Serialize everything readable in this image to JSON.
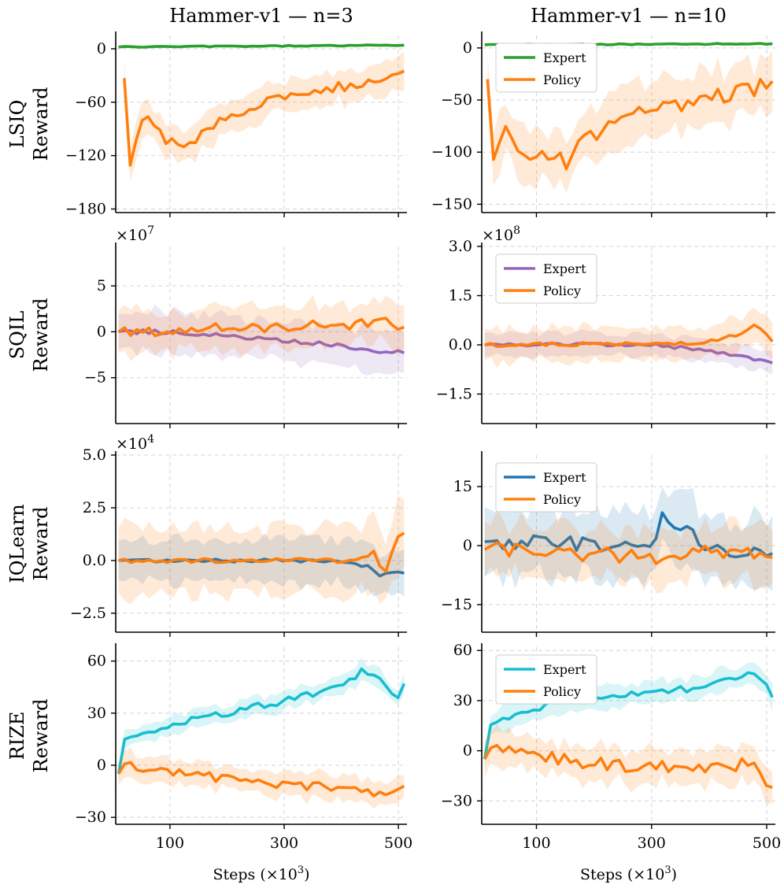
{
  "colors": {
    "Expert_lsiq": "#2ca02c",
    "Expert_sqil": "#9467bd",
    "Expert_iql": "#1f77b4",
    "Expert_rize": "#17becf",
    "Policy": "#ff7f0e"
  },
  "chart_data": [
    {
      "type": "line",
      "title": "Hammer-v1 — n=3",
      "ylabel": "LSIQ",
      "ylabel2": "Reward",
      "xlim": [
        5,
        515
      ],
      "ylim": [
        -184,
        15
      ],
      "yticks": [
        0,
        -60,
        -120,
        -180
      ],
      "yticklabels": [
        "0",
        "−60",
        "−120",
        "−180"
      ],
      "xticks": [
        100,
        300,
        500
      ],
      "xticklabels": [
        "100",
        "300",
        "500"
      ],
      "xlabel": "",
      "multiplier": "",
      "legend": false,
      "series": [
        {
          "name": "Expert",
          "color": "#2ca02c",
          "start": 10,
          "end": 510,
          "base": [
            2,
            4
          ],
          "noise": 0.6,
          "band": 1.2
        },
        {
          "name": "Policy",
          "color": "#ff7f0e",
          "start": 20,
          "end": 510,
          "anchors": [
            [
              20,
              -33
            ],
            [
              30,
              -127
            ],
            [
              50,
              -75
            ],
            [
              70,
              -80
            ],
            [
              80,
              -95
            ],
            [
              120,
              -115
            ],
            [
              160,
              -95
            ],
            [
              200,
              -78
            ],
            [
              260,
              -60
            ],
            [
              300,
              -55
            ],
            [
              360,
              -45
            ],
            [
              420,
              -42
            ],
            [
              460,
              -35
            ],
            [
              510,
              -25
            ]
          ],
          "noise": 6,
          "band": 22
        }
      ]
    },
    {
      "type": "line",
      "title": "Hammer-v1 — n=10",
      "ylabel": "",
      "ylabel2": "",
      "xlim": [
        5,
        515
      ],
      "ylim": [
        -158,
        12
      ],
      "yticks": [
        0,
        -50,
        -100,
        -150
      ],
      "yticklabels": [
        "0",
        "−50",
        "−100",
        "−150"
      ],
      "xticks": [
        100,
        300,
        500
      ],
      "xticklabels": [
        "100",
        "300",
        "500"
      ],
      "xlabel": "",
      "multiplier": "",
      "legend": true,
      "series": [
        {
          "name": "Expert",
          "color": "#2ca02c",
          "start": 10,
          "end": 510,
          "base": [
            3,
            4
          ],
          "noise": 0.5,
          "band": 1
        },
        {
          "name": "Policy",
          "color": "#ff7f0e",
          "start": 15,
          "end": 510,
          "anchors": [
            [
              15,
              -30
            ],
            [
              25,
              -100
            ],
            [
              45,
              -72
            ],
            [
              70,
              -103
            ],
            [
              110,
              -100
            ],
            [
              150,
              -110
            ],
            [
              200,
              -82
            ],
            [
              260,
              -62
            ],
            [
              310,
              -58
            ],
            [
              360,
              -55
            ],
            [
              420,
              -45
            ],
            [
              470,
              -42
            ],
            [
              510,
              -32
            ]
          ],
          "noise": 8,
          "band": 30
        }
      ]
    },
    {
      "type": "line",
      "title": "",
      "ylabel": "SQIL",
      "ylabel2": "Reward",
      "xlim": [
        5,
        515
      ],
      "ylim": [
        -10,
        9.3
      ],
      "yticks": [
        5,
        0,
        -5
      ],
      "yticklabels": [
        "5",
        "0",
        "−5"
      ],
      "xticks": [
        100,
        300,
        500
      ],
      "xticklabels": [
        "100",
        "300",
        "500"
      ],
      "xlabel": "",
      "multiplier": "×10^7",
      "legend": false,
      "series": [
        {
          "name": "Expert",
          "color": "#9467bd",
          "start": 10,
          "end": 510,
          "anchors": [
            [
              10,
              0
            ],
            [
              100,
              0
            ],
            [
              200,
              -0.5
            ],
            [
              300,
              -1
            ],
            [
              400,
              -1.5
            ],
            [
              460,
              -2
            ],
            [
              510,
              -2.3
            ]
          ],
          "noise": 0.25,
          "band": 2.6
        },
        {
          "name": "Policy",
          "color": "#ff7f0e",
          "start": 10,
          "end": 510,
          "anchors": [
            [
              10,
              0
            ],
            [
              100,
              0
            ],
            [
              160,
              0.4
            ],
            [
              220,
              0.4
            ],
            [
              300,
              0.5
            ],
            [
              360,
              0.8
            ],
            [
              420,
              0.7
            ],
            [
              470,
              1.2
            ],
            [
              510,
              0.5
            ]
          ],
          "noise": 0.5,
          "band": 2.6
        }
      ]
    },
    {
      "type": "line",
      "title": "",
      "ylabel": "",
      "ylabel2": "",
      "xlim": [
        5,
        515
      ],
      "ylim": [
        -2.4,
        3.0
      ],
      "yticks": [
        3.0,
        1.5,
        0.0,
        -1.5
      ],
      "yticklabels": [
        "3.0",
        "1.5",
        "0.0",
        "−1.5"
      ],
      "xticks": [
        100,
        300,
        500
      ],
      "xticklabels": [
        "100",
        "300",
        "500"
      ],
      "xlabel": "",
      "multiplier": "×10^8",
      "legend": true,
      "series": [
        {
          "name": "Expert",
          "color": "#9467bd",
          "start": 10,
          "end": 510,
          "anchors": [
            [
              10,
              0
            ],
            [
              300,
              0
            ],
            [
              360,
              -0.1
            ],
            [
              420,
              -0.25
            ],
            [
              470,
              -0.4
            ],
            [
              510,
              -0.55
            ]
          ],
          "noise": 0.05,
          "band": 0.4
        },
        {
          "name": "Policy",
          "color": "#ff7f0e",
          "start": 10,
          "end": 510,
          "anchors": [
            [
              10,
              0
            ],
            [
              300,
              0.02
            ],
            [
              400,
              0.1
            ],
            [
              450,
              0.3
            ],
            [
              480,
              0.6
            ],
            [
              510,
              0.1
            ]
          ],
          "noise": 0.06,
          "band": 0.6
        }
      ]
    },
    {
      "type": "line",
      "title": "",
      "ylabel": "IQLearn",
      "ylabel2": "Reward",
      "xlim": [
        5,
        515
      ],
      "ylim": [
        -3.4,
        5.0
      ],
      "yticks": [
        5.0,
        2.5,
        0.0,
        -2.5
      ],
      "yticklabels": [
        "5.0",
        "2.5",
        "0.0",
        "−2.5"
      ],
      "xticks": [
        100,
        300,
        500
      ],
      "xticklabels": [
        "100",
        "300",
        "500"
      ],
      "xlabel": "",
      "multiplier": "×10^4",
      "legend": false,
      "series": [
        {
          "name": "Expert",
          "color": "#1f77b4",
          "start": 10,
          "end": 510,
          "anchors": [
            [
              10,
              0
            ],
            [
              400,
              0
            ],
            [
              430,
              -0.2
            ],
            [
              450,
              -0.3
            ],
            [
              470,
              -0.8
            ],
            [
              490,
              -0.5
            ],
            [
              510,
              -0.6
            ]
          ],
          "noise": 0.08,
          "band": 1.2
        },
        {
          "name": "Policy",
          "color": "#ff7f0e",
          "start": 10,
          "end": 510,
          "anchors": [
            [
              10,
              0
            ],
            [
              400,
              0
            ],
            [
              440,
              0.1
            ],
            [
              460,
              0.4
            ],
            [
              475,
              -0.8
            ],
            [
              495,
              1.0
            ],
            [
              510,
              1.3
            ]
          ],
          "noise": 0.1,
          "band": 1.8
        }
      ]
    },
    {
      "type": "line",
      "title": "",
      "ylabel": "",
      "ylabel2": "",
      "xlim": [
        5,
        515
      ],
      "ylim": [
        -22,
        23
      ],
      "yticks": [
        15,
        0,
        -15
      ],
      "yticklabels": [
        "15",
        "0",
        "−15"
      ],
      "xticks": [
        100,
        300,
        500
      ],
      "xticklabels": [
        "100",
        "300",
        "500"
      ],
      "xlabel": "",
      "multiplier": "",
      "legend": true,
      "series": [
        {
          "name": "Expert",
          "color": "#1f77b4",
          "start": 10,
          "end": 510,
          "anchors": [
            [
              10,
              1
            ],
            [
              250,
              0
            ],
            [
              300,
              0
            ],
            [
              320,
              7
            ],
            [
              400,
              0
            ],
            [
              500,
              -2
            ]
          ],
          "noise": 2,
          "band": 10
        },
        {
          "name": "Policy",
          "color": "#ff7f0e",
          "start": 10,
          "end": 510,
          "anchors": [
            [
              10,
              -1
            ],
            [
              200,
              -2
            ],
            [
              300,
              -3
            ],
            [
              400,
              -1
            ],
            [
              500,
              -3
            ]
          ],
          "noise": 2,
          "band": 8
        }
      ]
    },
    {
      "type": "line",
      "title": "",
      "ylabel": "RIZE",
      "ylabel2": "Reward",
      "xlim": [
        5,
        515
      ],
      "ylim": [
        -34,
        68
      ],
      "yticks": [
        60,
        30,
        0,
        -30
      ],
      "yticklabels": [
        "60",
        "30",
        "0",
        "−30"
      ],
      "xticks": [
        100,
        300,
        500
      ],
      "xticklabels": [
        "100",
        "300",
        "500"
      ],
      "xlabel": "Steps (×10^3)",
      "multiplier": "",
      "legend": false,
      "series": [
        {
          "name": "Expert",
          "color": "#17becf",
          "start": 10,
          "end": 510,
          "anchors": [
            [
              10,
              -5
            ],
            [
              20,
              15
            ],
            [
              40,
              17
            ],
            [
              100,
              23
            ],
            [
              200,
              30
            ],
            [
              300,
              37
            ],
            [
              400,
              45
            ],
            [
              440,
              55
            ],
            [
              500,
              40
            ],
            [
              510,
              47
            ]
          ],
          "noise": 2,
          "band": 6
        },
        {
          "name": "Policy",
          "color": "#ff7f0e",
          "start": 10,
          "end": 510,
          "anchors": [
            [
              10,
              -5
            ],
            [
              20,
              0
            ],
            [
              100,
              -3
            ],
            [
              200,
              -8
            ],
            [
              300,
              -11
            ],
            [
              400,
              -13
            ],
            [
              460,
              -17
            ],
            [
              510,
              -12
            ]
          ],
          "noise": 2.5,
          "band": 8
        }
      ]
    },
    {
      "type": "line",
      "title": "",
      "ylabel": "",
      "ylabel2": "",
      "xlim": [
        5,
        515
      ],
      "ylim": [
        -44,
        62
      ],
      "yticks": [
        60,
        30,
        0,
        -30
      ],
      "yticklabels": [
        "60",
        "30",
        "0",
        "−30"
      ],
      "xticks": [
        100,
        300,
        500
      ],
      "xticklabels": [
        "100",
        "300",
        "500"
      ],
      "xlabel": "Steps (×10^3)",
      "multiplier": "",
      "legend": true,
      "series": [
        {
          "name": "Expert",
          "color": "#17becf",
          "start": 10,
          "end": 510,
          "anchors": [
            [
              10,
              -5
            ],
            [
              20,
              16
            ],
            [
              60,
              20
            ],
            [
              100,
              25
            ],
            [
              200,
              32
            ],
            [
              300,
              35
            ],
            [
              400,
              38
            ],
            [
              480,
              47
            ],
            [
              510,
              32
            ]
          ],
          "noise": 2.5,
          "band": 8
        },
        {
          "name": "Policy",
          "color": "#ff7f0e",
          "start": 10,
          "end": 510,
          "anchors": [
            [
              10,
              -5
            ],
            [
              20,
              1
            ],
            [
              100,
              -4
            ],
            [
              200,
              -7
            ],
            [
              300,
              -10
            ],
            [
              400,
              -11
            ],
            [
              470,
              -8
            ],
            [
              510,
              -22
            ]
          ],
          "noise": 4,
          "band": 12
        }
      ]
    }
  ]
}
